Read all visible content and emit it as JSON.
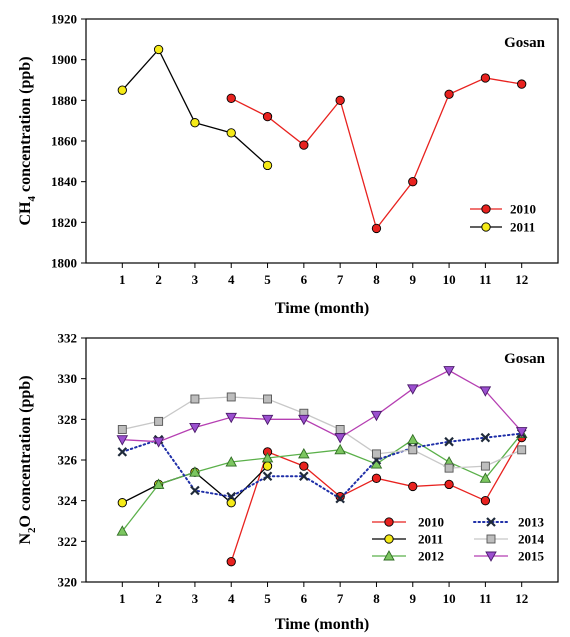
{
  "chart_data": [
    {
      "type": "line",
      "station_label": "Gosan",
      "xlabel": "Time (month)",
      "ylabel": "CH4 concentration (ppb)",
      "ylabel_main": "CH",
      "ylabel_sub": "4",
      "ylabel_rest": " concentration (ppb)",
      "x_ticks": [
        1,
        2,
        3,
        4,
        5,
        6,
        7,
        8,
        9,
        10,
        11,
        12
      ],
      "y_ticks": [
        1800,
        1820,
        1840,
        1860,
        1880,
        1900,
        1920
      ],
      "xlim": [
        0,
        13
      ],
      "ylim": [
        1800,
        1920
      ],
      "legend_position": "lower-right",
      "series": [
        {
          "name": "2010",
          "color": "#e8221f",
          "marker": "circle",
          "marker_fill": "#e8221f",
          "line": "solid",
          "x": [
            4,
            5,
            6,
            7,
            8,
            9,
            10,
            11,
            12
          ],
          "y": [
            1881,
            1872,
            1858,
            1880,
            1817,
            1840,
            1883,
            1891,
            1888
          ]
        },
        {
          "name": "2011",
          "color": "#000000",
          "marker": "circle",
          "marker_fill": "#f5ea17",
          "line": "solid",
          "x": [
            1,
            2,
            3,
            4,
            5
          ],
          "y": [
            1885,
            1905,
            1869,
            1864,
            1848
          ]
        }
      ]
    },
    {
      "type": "line",
      "station_label": "Gosan",
      "xlabel": "Time (month)",
      "ylabel": "N2O concentration (ppb)",
      "ylabel_main": "N",
      "ylabel_sub": "2",
      "ylabel_rest": "O concentration (ppb)",
      "x_ticks": [
        1,
        2,
        3,
        4,
        5,
        6,
        7,
        8,
        9,
        10,
        11,
        12
      ],
      "y_ticks": [
        320,
        322,
        324,
        326,
        328,
        330,
        332
      ],
      "xlim": [
        0,
        13
      ],
      "ylim": [
        320,
        332
      ],
      "legend_position": "lower-right",
      "series": [
        {
          "name": "2010",
          "color": "#e8221f",
          "marker": "circle",
          "marker_fill": "#e8221f",
          "line": "solid",
          "x": [
            4,
            5,
            6,
            7,
            8,
            9,
            10,
            11,
            12
          ],
          "y": [
            321.0,
            326.4,
            325.7,
            324.2,
            325.1,
            324.7,
            324.8,
            324.0,
            327.1
          ]
        },
        {
          "name": "2011",
          "color": "#000000",
          "marker": "circle",
          "marker_fill": "#f5ea17",
          "line": "solid",
          "x": [
            1,
            2,
            3,
            4,
            5
          ],
          "y": [
            323.9,
            324.8,
            325.4,
            323.9,
            325.7
          ]
        },
        {
          "name": "2012",
          "color": "#5bb04a",
          "marker": "triangle-up",
          "marker_fill": "#7cc660",
          "line": "solid",
          "x": [
            1,
            2,
            3,
            4,
            5,
            6,
            7,
            8,
            9,
            10,
            11,
            12
          ],
          "y": [
            322.5,
            324.8,
            325.4,
            325.9,
            326.1,
            326.3,
            326.5,
            325.8,
            327.0,
            325.9,
            325.1,
            327.3
          ]
        },
        {
          "name": "2013",
          "color": "#1f2fa8",
          "marker": "x",
          "marker_fill": "#1f2a3a",
          "line": "dotted",
          "x": [
            1,
            2,
            3,
            4,
            5,
            6,
            7,
            8,
            9,
            10,
            11,
            12
          ],
          "y": [
            326.4,
            327.0,
            324.5,
            324.2,
            325.2,
            325.2,
            324.1,
            326.0,
            326.6,
            326.9,
            327.1,
            327.3
          ]
        },
        {
          "name": "2014",
          "color": "#c8c8c8",
          "marker": "square",
          "marker_fill": "#bdbdbd",
          "line": "solid",
          "x": [
            1,
            2,
            3,
            4,
            5,
            6,
            7,
            8,
            9,
            10,
            11,
            12
          ],
          "y": [
            327.5,
            327.9,
            329.0,
            329.1,
            329.0,
            328.3,
            327.5,
            326.3,
            326.5,
            325.6,
            325.7,
            326.5
          ]
        },
        {
          "name": "2015",
          "color": "#b53fb2",
          "marker": "triangle-down",
          "marker_fill": "#9b4fcf",
          "line": "solid",
          "x": [
            1,
            2,
            3,
            4,
            5,
            6,
            7,
            8,
            9,
            10,
            11,
            12
          ],
          "y": [
            327.0,
            326.9,
            327.6,
            328.1,
            328.0,
            328.0,
            327.1,
            328.2,
            329.5,
            330.4,
            329.4,
            327.4
          ]
        }
      ]
    }
  ]
}
